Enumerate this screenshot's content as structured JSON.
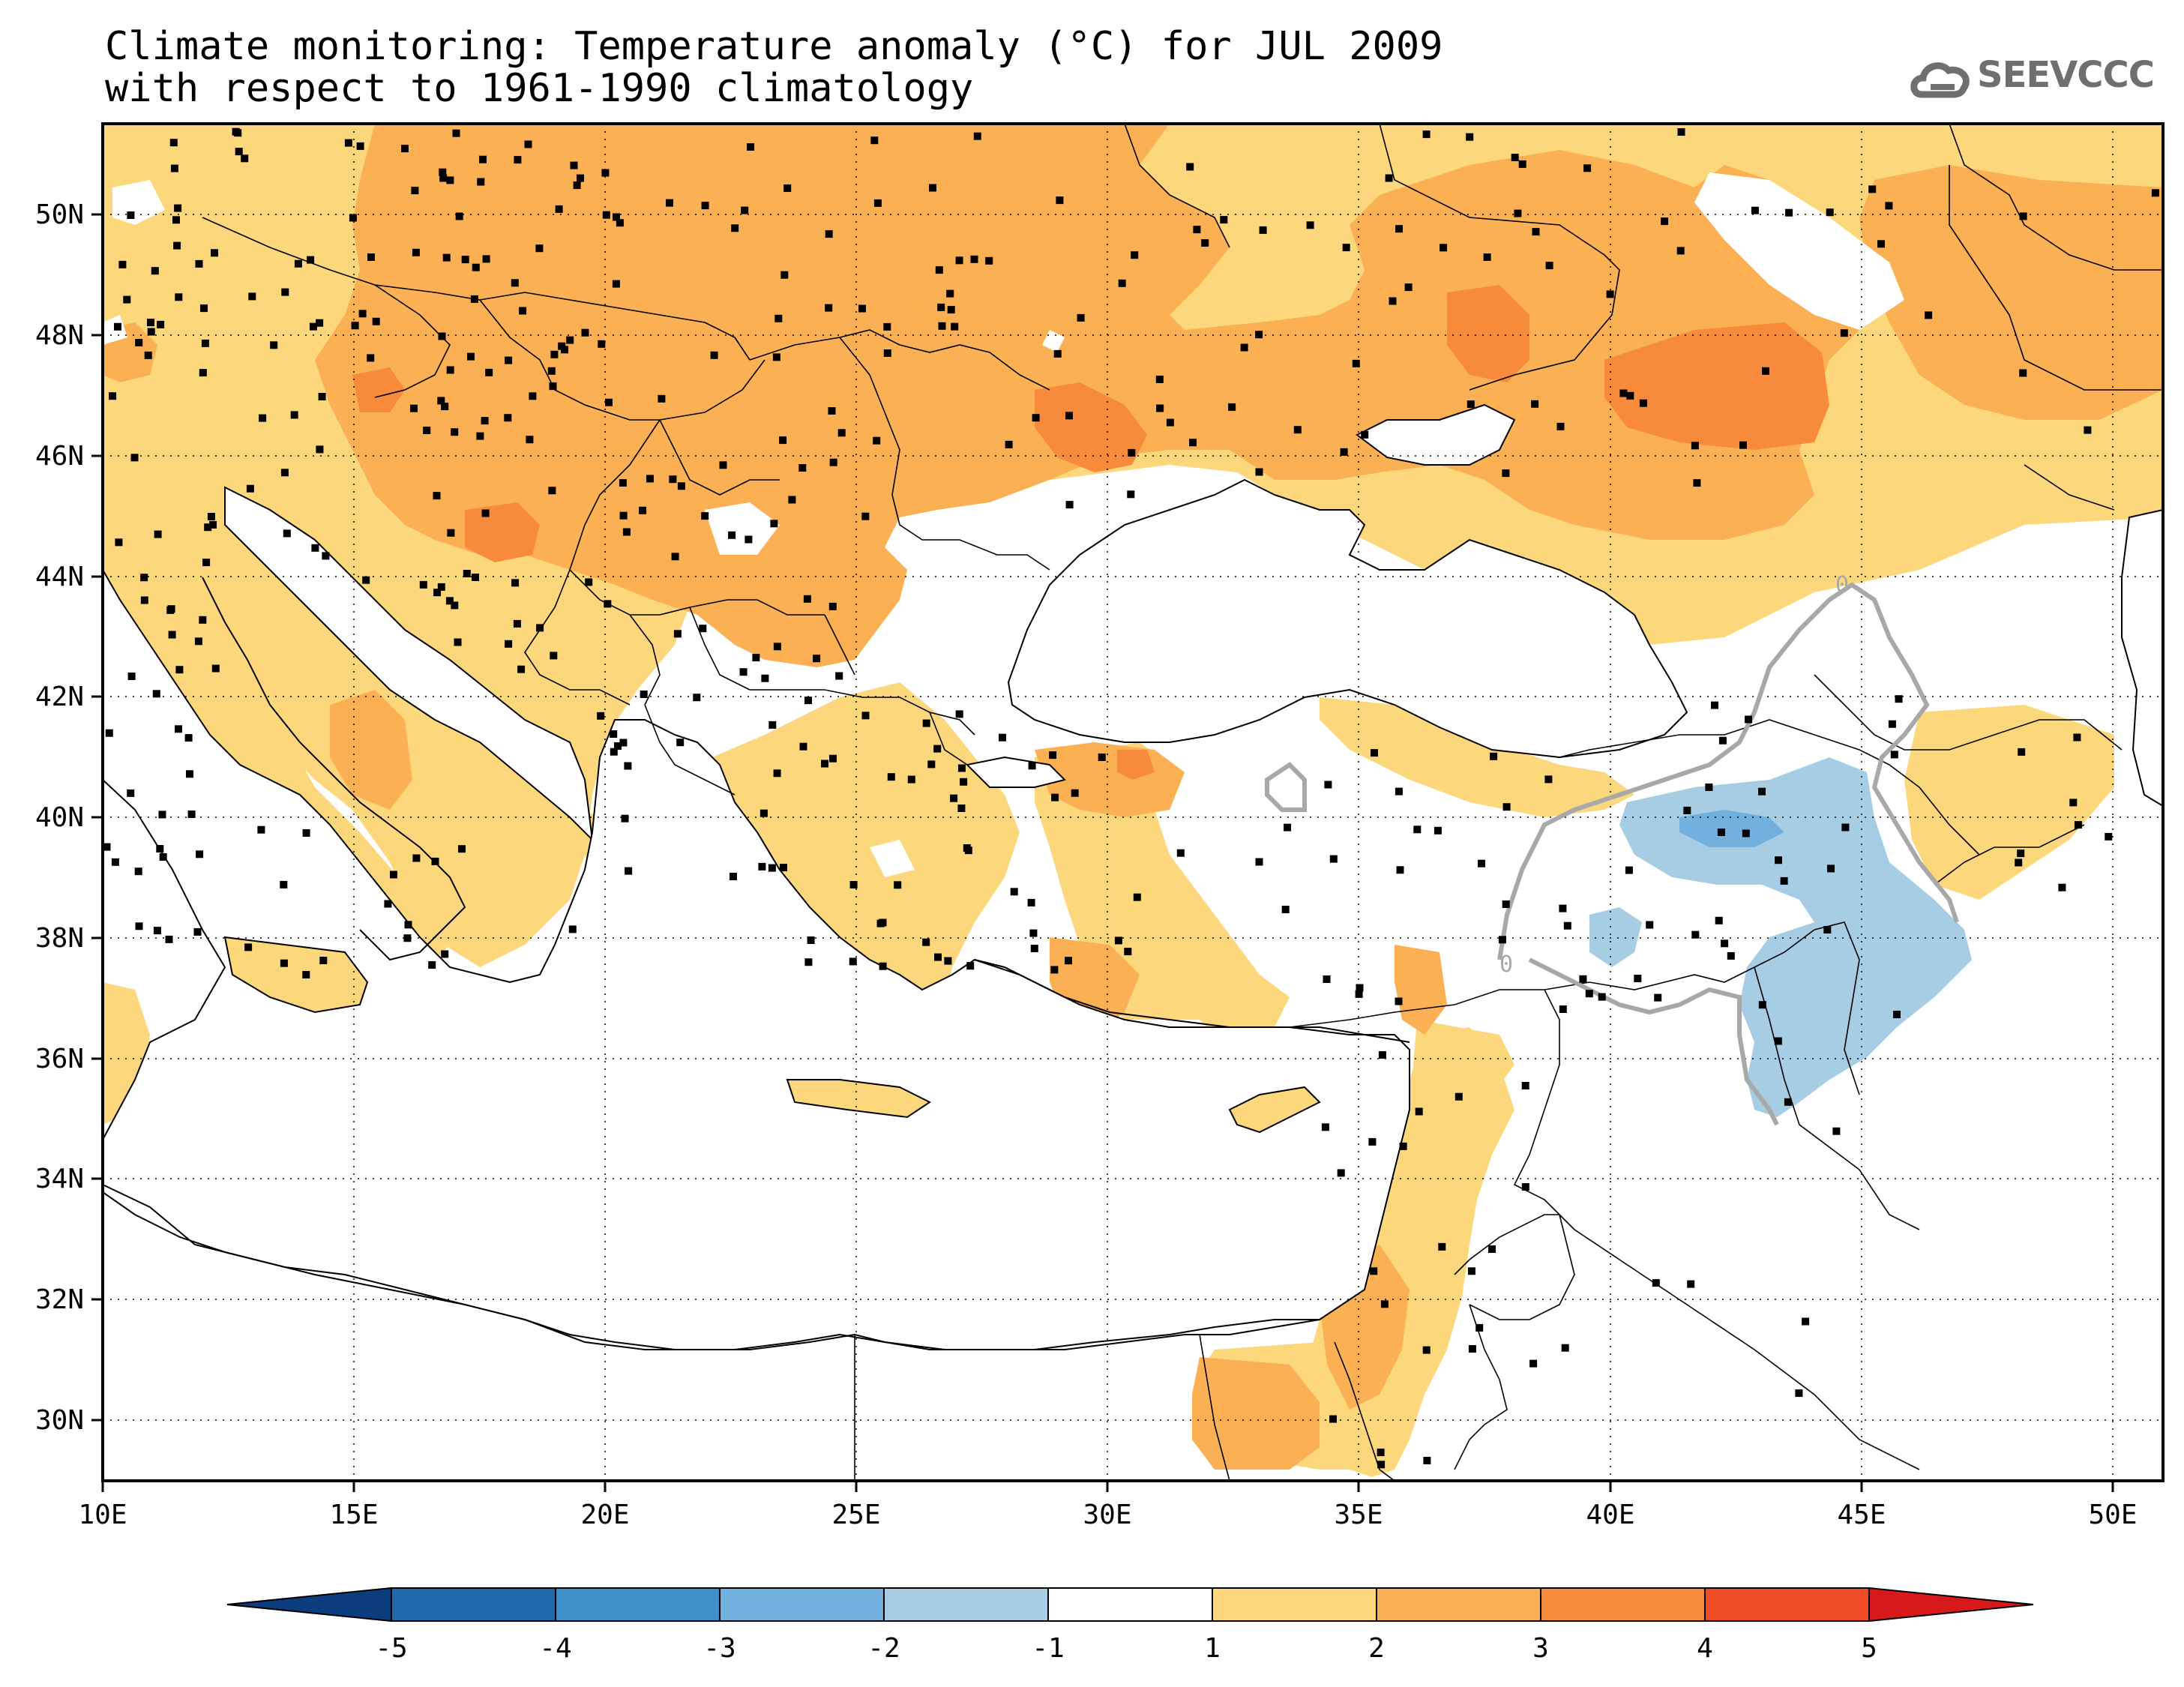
{
  "title": {
    "line1": "Climate monitoring: Temperature anomaly (°C) for JUL 2009",
    "line2": "with respect to 1961-1990 climatology"
  },
  "logo": {
    "text": "SEEVCCC",
    "icon": "cloud-icon"
  },
  "axes": {
    "x_ticks": [
      "10E",
      "15E",
      "20E",
      "25E",
      "30E",
      "35E",
      "40E",
      "45E",
      "50E"
    ],
    "y_ticks": [
      "50N",
      "48N",
      "46N",
      "44N",
      "42N",
      "40N",
      "38N",
      "36N",
      "34N",
      "32N",
      "30N"
    ],
    "lon_range": [
      10,
      51
    ],
    "lat_range": [
      29,
      51.5
    ]
  },
  "contour_labels": [
    "0",
    "0"
  ],
  "colorbar": {
    "labels": [
      "-5",
      "-4",
      "-3",
      "-2",
      "-1",
      "1",
      "2",
      "3",
      "4",
      "5"
    ],
    "colors": [
      "#0b3d7e",
      "#1f6aad",
      "#3d8ec9",
      "#72b1dd",
      "#a6cde4",
      "#ffffff",
      "#fdd77c",
      "#fbb053",
      "#f88a3c",
      "#f04d26",
      "#d7191c"
    ]
  }
}
